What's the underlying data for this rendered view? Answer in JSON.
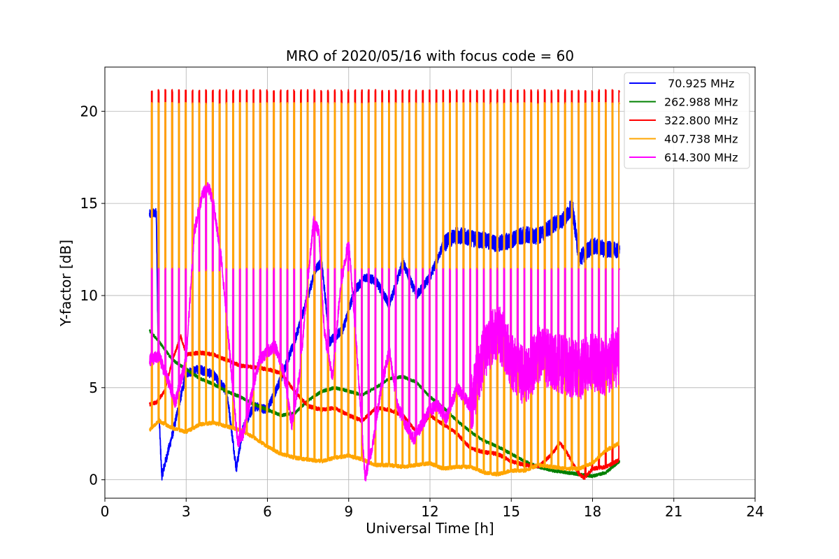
{
  "chart_data": {
    "type": "line",
    "title": "MRO of 2020/05/16 with focus code = 60",
    "xlabel": "Universal Time [h]",
    "ylabel": "Y-factor [dB]",
    "xlim": [
      0,
      24
    ],
    "ylim": [
      -1.0,
      22.4
    ],
    "xticks": [
      0,
      3,
      6,
      9,
      12,
      15,
      18,
      21,
      24
    ],
    "xtick_labels": [
      "0",
      "3",
      "6",
      "9",
      "12",
      "15",
      "18",
      "21",
      "24"
    ],
    "yticks": [
      0,
      5,
      10,
      15,
      20
    ],
    "ytick_labels": [
      "0",
      "5",
      "10",
      "15",
      "20"
    ],
    "grid": true,
    "legend_position": "top-right",
    "calibration_pulses": {
      "period_h": 0.25,
      "start_h": 1.72,
      "end_h": 19.0,
      "red_peak": 21.1,
      "orange_peak": 20.4,
      "magenta_peak": 11.4
    },
    "series": [
      {
        "name": " 70.925 MHz",
        "color": "#0000ff",
        "x": [
          1.65,
          1.9,
          2.0,
          2.1,
          2.5,
          3.0,
          3.5,
          4.0,
          4.5,
          4.85,
          5.1,
          5.5,
          6.0,
          6.5,
          7.0,
          7.5,
          7.8,
          8.0,
          8.3,
          8.8,
          9.2,
          9.6,
          10.0,
          10.5,
          11.0,
          11.5,
          12.0,
          12.5,
          13.0,
          13.5,
          14.0,
          14.5,
          15.0,
          15.5,
          16.0,
          16.5,
          17.0,
          17.25,
          17.5,
          18.0,
          18.5,
          19.0
        ],
        "y": [
          14.4,
          14.5,
          3.5,
          0.2,
          2.5,
          5.8,
          6.0,
          5.7,
          4.8,
          0.6,
          2.8,
          4.0,
          3.8,
          5.5,
          7.5,
          10.0,
          11.5,
          11.8,
          7.5,
          8.2,
          10.2,
          11.0,
          10.8,
          9.5,
          11.8,
          10.0,
          11.0,
          12.8,
          13.3,
          13.1,
          13.0,
          12.8,
          13.0,
          13.3,
          13.2,
          13.8,
          14.2,
          14.9,
          12.0,
          12.7,
          12.5,
          12.5
        ]
      },
      {
        "name": "262.988 MHz",
        "color": "#008000",
        "x": [
          1.65,
          2.0,
          2.5,
          3.0,
          3.5,
          4.0,
          4.5,
          5.0,
          5.5,
          6.0,
          6.5,
          7.0,
          7.5,
          8.0,
          8.5,
          9.0,
          9.5,
          10.0,
          10.5,
          11.0,
          11.5,
          12.0,
          12.5,
          13.0,
          13.5,
          14.0,
          14.5,
          15.0,
          15.5,
          16.0,
          16.5,
          17.0,
          17.5,
          18.0,
          18.5,
          19.0
        ],
        "y": [
          8.1,
          7.5,
          6.5,
          6.0,
          5.5,
          5.2,
          4.8,
          4.5,
          4.1,
          3.8,
          3.5,
          3.6,
          4.3,
          4.8,
          5.0,
          4.8,
          4.6,
          5.0,
          5.5,
          5.6,
          5.3,
          4.5,
          3.9,
          3.2,
          2.6,
          2.1,
          1.8,
          1.4,
          1.0,
          0.7,
          0.5,
          0.4,
          0.3,
          0.2,
          0.4,
          1.0
        ]
      },
      {
        "name": "322.800 MHz",
        "color": "#ff0000",
        "x": [
          1.65,
          1.9,
          2.2,
          2.5,
          2.8,
          3.0,
          3.5,
          4.0,
          4.5,
          5.0,
          5.5,
          6.0,
          6.5,
          7.0,
          7.5,
          8.0,
          8.5,
          9.0,
          9.5,
          10.0,
          10.5,
          11.0,
          11.5,
          12.0,
          12.5,
          13.0,
          13.5,
          14.0,
          14.5,
          15.0,
          15.5,
          16.0,
          16.5,
          16.8,
          17.0,
          17.5,
          17.7,
          18.0,
          18.5,
          19.0
        ],
        "y": [
          4.1,
          4.2,
          4.8,
          6.5,
          7.8,
          6.8,
          6.9,
          6.8,
          6.5,
          6.2,
          6.1,
          6.0,
          5.8,
          4.8,
          4.0,
          3.8,
          3.9,
          3.5,
          3.2,
          3.9,
          3.8,
          3.5,
          2.6,
          3.5,
          3.0,
          2.5,
          1.7,
          1.5,
          1.4,
          1.0,
          0.8,
          0.7,
          1.4,
          2.0,
          1.6,
          0.3,
          0.1,
          0.6,
          0.7,
          1.1
        ]
      },
      {
        "name": "407.738 MHz",
        "color": "#ffa500",
        "x": [
          1.65,
          2.0,
          2.5,
          3.0,
          3.5,
          4.0,
          4.5,
          5.0,
          5.5,
          6.0,
          6.5,
          7.0,
          7.5,
          8.0,
          8.5,
          9.0,
          9.5,
          10.0,
          10.5,
          11.0,
          11.5,
          12.0,
          12.5,
          13.0,
          13.5,
          14.0,
          14.5,
          15.0,
          15.5,
          16.0,
          16.5,
          17.0,
          17.5,
          18.0,
          18.5,
          19.0
        ],
        "y": [
          2.7,
          3.2,
          2.8,
          2.6,
          3.0,
          3.1,
          2.9,
          2.7,
          2.3,
          1.8,
          1.4,
          1.2,
          1.1,
          1.0,
          1.2,
          1.3,
          1.1,
          0.8,
          0.8,
          0.7,
          0.8,
          0.9,
          0.6,
          0.7,
          0.7,
          0.4,
          0.3,
          0.5,
          0.5,
          0.8,
          0.7,
          0.6,
          0.6,
          0.9,
          1.6,
          2.0
        ]
      },
      {
        "name": "614.300 MHz",
        "color": "#ff00ff",
        "x": [
          1.65,
          2.0,
          2.3,
          2.6,
          3.0,
          3.3,
          3.6,
          3.8,
          4.0,
          4.3,
          4.6,
          4.9,
          5.1,
          5.4,
          5.7,
          6.0,
          6.3,
          6.6,
          6.9,
          7.2,
          7.5,
          7.7,
          7.9,
          8.1,
          8.4,
          8.7,
          9.0,
          9.3,
          9.6,
          9.9,
          10.2,
          10.5,
          10.8,
          11.1,
          11.4,
          11.7,
          12.0,
          12.3,
          12.6,
          13.0,
          13.5,
          14.0,
          14.5,
          15.0,
          15.5,
          16.0,
          16.5,
          17.0,
          17.5,
          18.0,
          18.5,
          19.0
        ],
        "y": [
          6.5,
          6.7,
          5.5,
          4.2,
          6.5,
          13.5,
          15.5,
          16.0,
          15.0,
          12.0,
          7.0,
          2.0,
          2.5,
          4.5,
          6.5,
          7.0,
          7.2,
          5.8,
          3.0,
          5.8,
          11.0,
          14.0,
          13.5,
          8.0,
          5.5,
          10.5,
          13.0,
          7.0,
          0.1,
          2.0,
          5.0,
          7.0,
          4.0,
          3.0,
          2.2,
          3.0,
          3.8,
          4.0,
          3.3,
          5.0,
          4.0,
          7.0,
          8.2,
          6.5,
          5.5,
          6.8,
          6.5,
          6.2,
          5.9,
          6.4,
          6.1,
          6.8
        ]
      }
    ]
  }
}
